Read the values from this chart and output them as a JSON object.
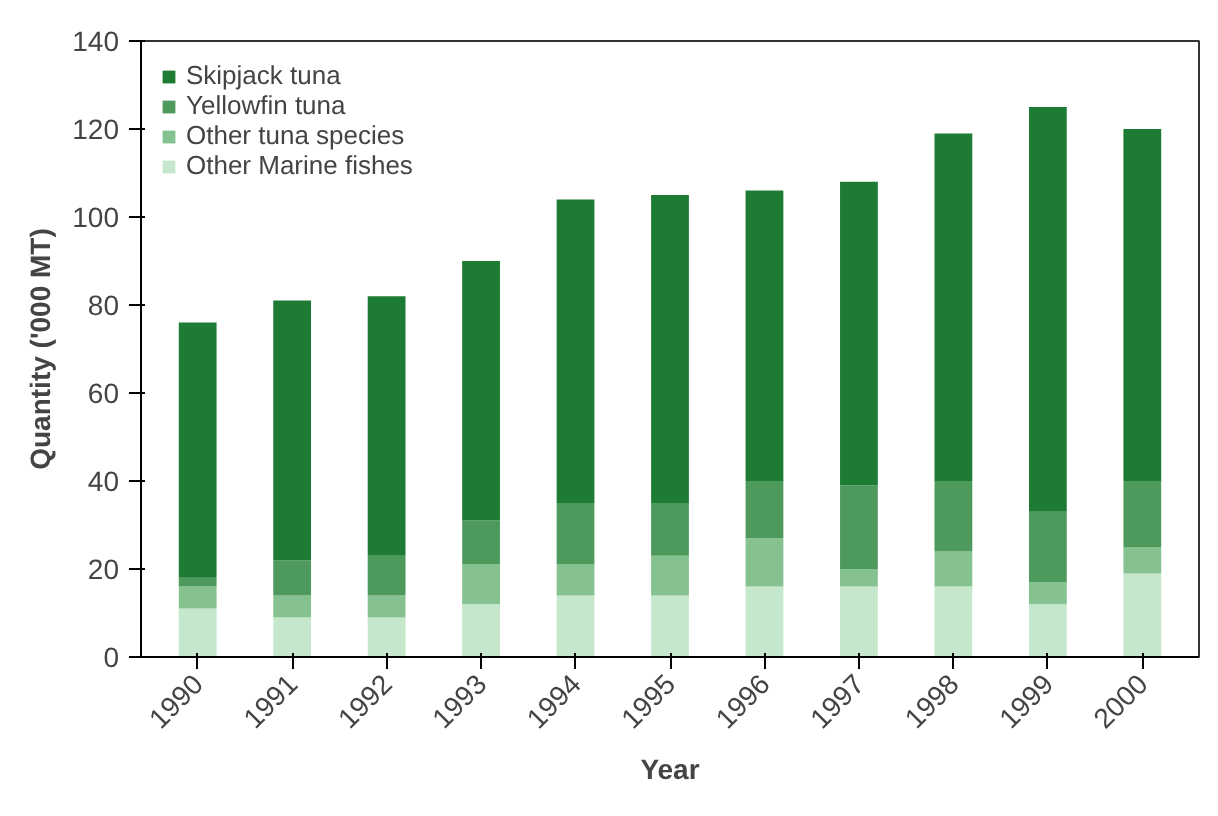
{
  "chart_data": {
    "type": "bar",
    "stacked": true,
    "xlabel": "Year",
    "ylabel": "Quantity ('000 MT)",
    "categories": [
      "1990",
      "1991",
      "1992",
      "1993",
      "1994",
      "1995",
      "1996",
      "1997",
      "1998",
      "1999",
      "2000"
    ],
    "series": [
      {
        "name": "Other Marine fishes",
        "color": "#c5e8cc",
        "values": [
          11,
          9,
          9,
          12,
          14,
          14,
          16,
          16,
          16,
          12,
          19
        ]
      },
      {
        "name": "Other tuna species",
        "color": "#85c28f",
        "values": [
          5,
          5,
          5,
          9,
          7,
          9,
          11,
          4,
          8,
          5,
          6
        ]
      },
      {
        "name": "Yellowfin tuna",
        "color": "#4d9a5c",
        "values": [
          2,
          8,
          9,
          10,
          14,
          12,
          13,
          19,
          16,
          16,
          15
        ]
      },
      {
        "name": "Skipjack tuna",
        "color": "#1e7b34",
        "values": [
          58,
          59,
          59,
          59,
          69,
          70,
          66,
          69,
          79,
          92,
          80
        ]
      }
    ],
    "ylim": [
      0,
      140
    ],
    "yticks": [
      0,
      20,
      40,
      60,
      80,
      100,
      120,
      140
    ],
    "grid": false,
    "legend": "top left"
  }
}
